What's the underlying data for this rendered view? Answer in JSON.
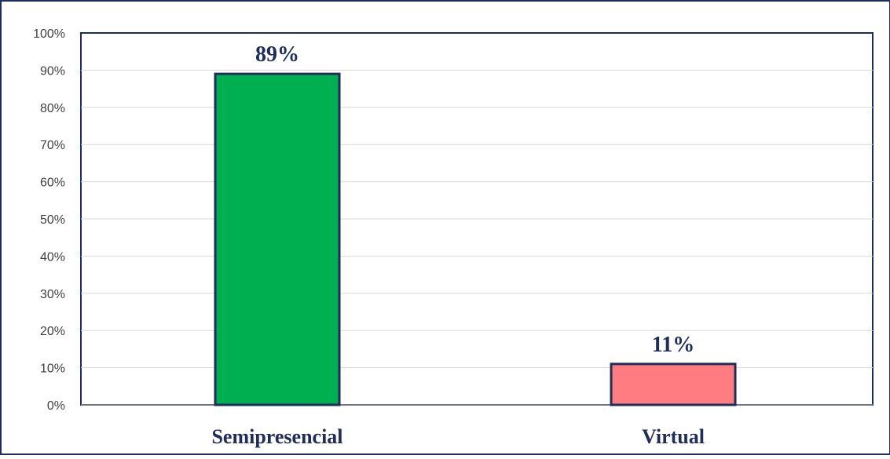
{
  "chart_data": {
    "type": "bar",
    "categories": [
      "Semipresencial",
      "Virtual"
    ],
    "values": [
      89,
      11
    ],
    "data_labels": [
      "89%",
      "11%"
    ],
    "bar_colors": [
      "#00b050",
      "#ff7c80"
    ],
    "bar_outline_color": "#1f2d5a",
    "ylim": [
      0,
      100
    ],
    "y_ticks": [
      0,
      10,
      20,
      30,
      40,
      50,
      60,
      70,
      80,
      90,
      100
    ],
    "y_tick_labels": [
      "0%",
      "10%",
      "20%",
      "30%",
      "40%",
      "50%",
      "60%",
      "70%",
      "80%",
      "90%",
      "100%"
    ],
    "grid": true,
    "legend": "none",
    "title": "",
    "xlabel": "",
    "ylabel": ""
  },
  "colors": {
    "frame": "#1f2d5a",
    "text": "#1f2d5a",
    "gridline": "#d9d9d9",
    "tick_text": "#404040"
  }
}
